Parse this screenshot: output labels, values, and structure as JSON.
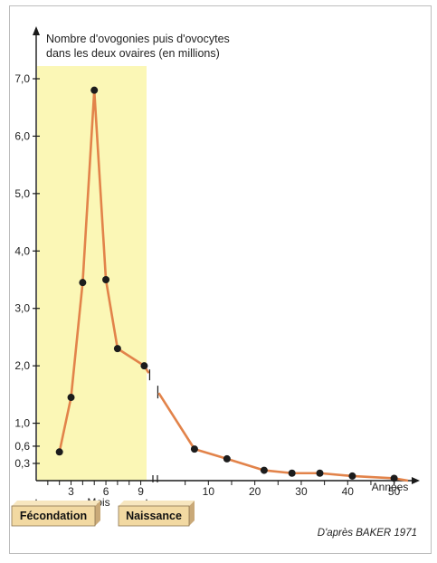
{
  "chart_data": {
    "type": "line",
    "title_lines": [
      "Nombre d'ovogonies puis d'ovocytes",
      "dans les deux ovaires (en millions)"
    ],
    "ylabel": "",
    "y_ticks": [
      "7,0",
      "6,0",
      "5,0",
      "4,0",
      "3,0",
      "2,0",
      "1,0",
      "0,6",
      "0,3"
    ],
    "y_tick_values": [
      7.0,
      6.0,
      5.0,
      4.0,
      3.0,
      2.0,
      1.0,
      0.6,
      0.3
    ],
    "ylim": [
      0,
      7.3
    ],
    "months_axis": {
      "label": "Mois",
      "ticks": [
        "3",
        "6",
        "9"
      ],
      "tick_values": [
        3,
        6,
        9
      ],
      "xlim": [
        0,
        9.5
      ]
    },
    "years_axis": {
      "label": "Années",
      "ticks": [
        "10",
        "20",
        "30",
        "40",
        "50"
      ],
      "tick_values": [
        10,
        20,
        30,
        40,
        50
      ],
      "xlim": [
        0,
        53
      ]
    },
    "series": [
      {
        "segment": "prenatal",
        "x_unit": "mois",
        "points": [
          {
            "x": 2.0,
            "y": 0.5
          },
          {
            "x": 3.0,
            "y": 1.45
          },
          {
            "x": 4.0,
            "y": 3.45
          },
          {
            "x": 5.0,
            "y": 6.8
          },
          {
            "x": 6.0,
            "y": 3.5
          },
          {
            "x": 7.0,
            "y": 2.3
          },
          {
            "x": 9.3,
            "y": 2.0
          }
        ]
      },
      {
        "segment": "postnatal",
        "x_unit": "années",
        "points": [
          {
            "x": 7,
            "y": 0.55
          },
          {
            "x": 14,
            "y": 0.38
          },
          {
            "x": 22,
            "y": 0.18
          },
          {
            "x": 28,
            "y": 0.13
          },
          {
            "x": 34,
            "y": 0.13
          },
          {
            "x": 41,
            "y": 0.08
          },
          {
            "x": 50,
            "y": 0.04
          },
          {
            "x": 53,
            "y": 0.0
          }
        ]
      }
    ],
    "shaded_region": "période prénatale",
    "events": [
      {
        "label": "Fécondation"
      },
      {
        "label": "Naissance"
      }
    ],
    "credit": "D'après BAKER 1971",
    "colors": {
      "line": "#e2834a",
      "marker": "#1c1c1c",
      "shade": "#fbf7b6",
      "label_box": "#f2d9a2",
      "axis": "#1a1a1a"
    }
  }
}
